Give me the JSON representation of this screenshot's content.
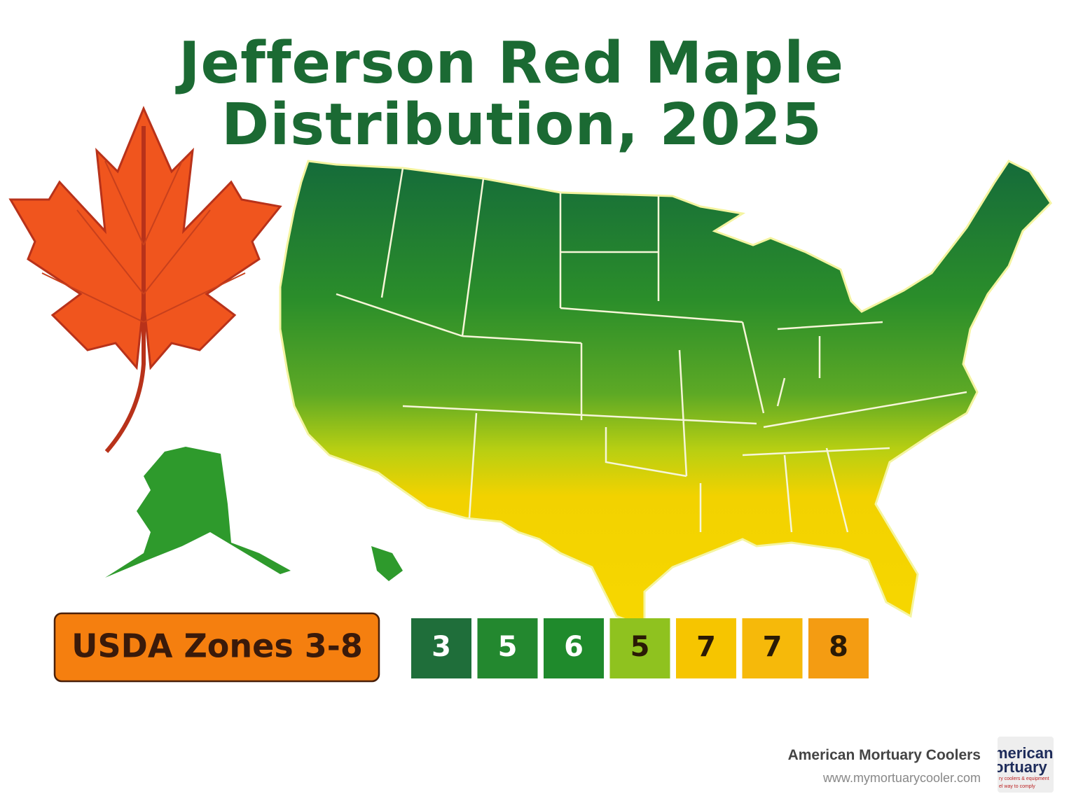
{
  "header": {
    "title_lines": [
      "Jefferson Red Maple",
      "Distribution, 2025"
    ]
  },
  "badge": {
    "label": "USDA Zones 3-8"
  },
  "legend": {
    "zones": [
      {
        "label": "3",
        "color": "#1f6e3a"
      },
      {
        "label": "5",
        "color": "#23882f"
      },
      {
        "label": "6",
        "color": "#1f8a2c"
      },
      {
        "label": "5",
        "color": "#8fc21f"
      },
      {
        "label": "7",
        "color": "#f6c500"
      },
      {
        "label": "7",
        "color": "#f6b90a"
      },
      {
        "label": "8",
        "color": "#f49c12"
      }
    ]
  },
  "footer": {
    "company": "American Mortuary Coolers",
    "url": "www.mymortuarycooler.com",
    "logo_lines": [
      "merican",
      "ortuary",
      "ry coolers & equipment",
      "el way to comply"
    ]
  }
}
